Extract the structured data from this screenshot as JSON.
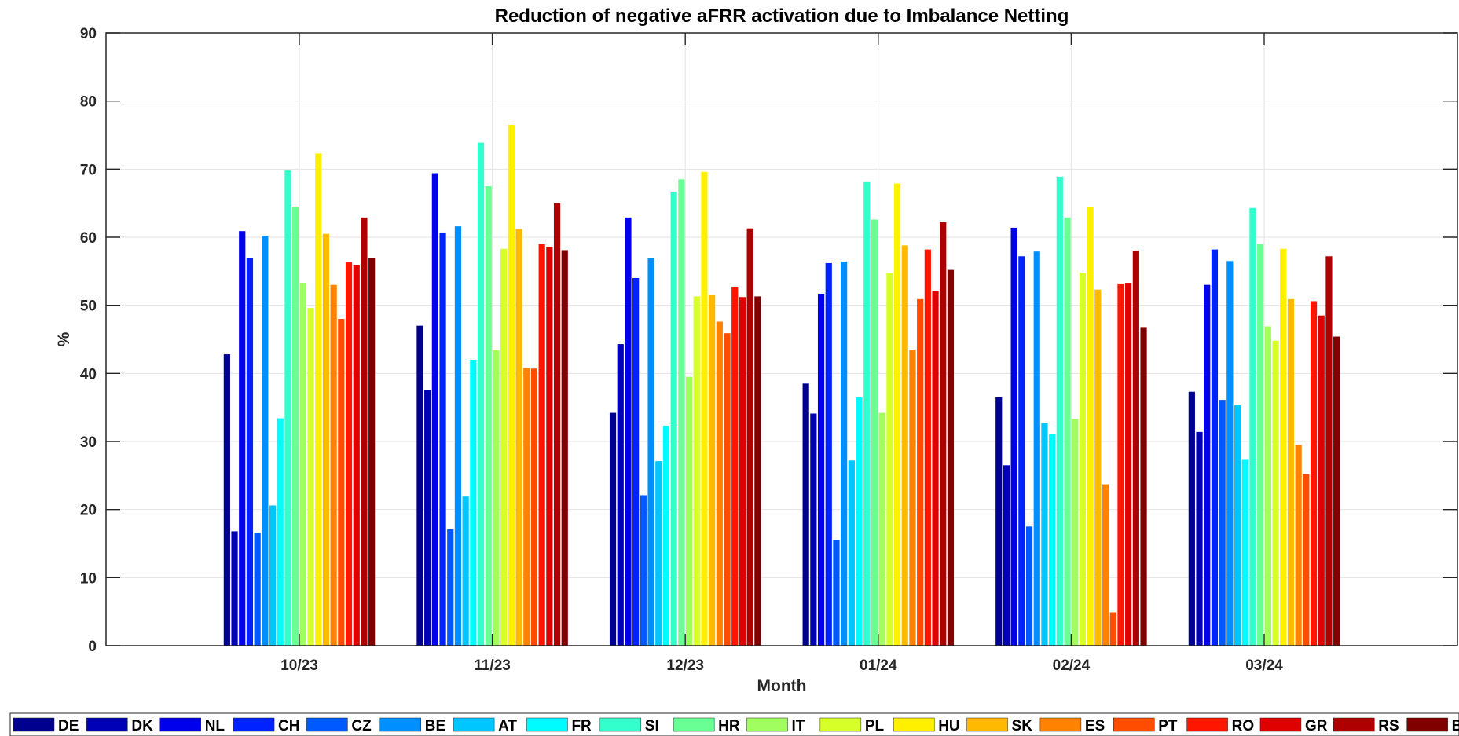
{
  "chart_data": {
    "type": "bar",
    "title": "Reduction of negative aFRR activation due to Imbalance Netting",
    "xlabel": "Month",
    "ylabel": "%",
    "ylim": [
      0,
      90
    ],
    "yticks": [
      0,
      10,
      20,
      30,
      40,
      50,
      60,
      70,
      80,
      90
    ],
    "grid": true,
    "legend_placement": "bottom",
    "categories": [
      "10/23",
      "11/23",
      "12/23",
      "01/24",
      "02/24",
      "03/24"
    ],
    "series": [
      {
        "name": "DE",
        "color": "#00008F",
        "values": [
          42.8,
          47.0,
          34.2,
          38.5,
          36.5,
          37.3
        ]
      },
      {
        "name": "DK",
        "color": "#0000B6",
        "values": [
          16.8,
          37.6,
          44.3,
          34.1,
          26.5,
          31.4
        ]
      },
      {
        "name": "NL",
        "color": "#0000EC",
        "values": [
          60.9,
          69.4,
          62.9,
          51.7,
          61.4,
          53.0
        ]
      },
      {
        "name": "CH",
        "color": "#0022FF",
        "values": [
          57.0,
          60.7,
          54.0,
          56.2,
          57.2,
          58.2
        ]
      },
      {
        "name": "CZ",
        "color": "#0058FF",
        "values": [
          16.6,
          17.1,
          22.1,
          15.5,
          17.5,
          36.1
        ]
      },
      {
        "name": "BE",
        "color": "#008FFF",
        "values": [
          60.2,
          61.6,
          56.9,
          56.4,
          57.9,
          56.5
        ]
      },
      {
        "name": "AT",
        "color": "#00C6FF",
        "values": [
          20.6,
          21.9,
          27.1,
          27.2,
          32.7,
          35.3
        ]
      },
      {
        "name": "FR",
        "color": "#00FCFF",
        "values": [
          33.4,
          42.0,
          32.3,
          36.5,
          31.1,
          27.4
        ]
      },
      {
        "name": "SI",
        "color": "#33FFCC",
        "values": [
          69.8,
          73.9,
          66.7,
          68.1,
          68.9,
          64.3
        ]
      },
      {
        "name": "HR",
        "color": "#6AFF95",
        "values": [
          64.5,
          67.5,
          68.5,
          62.6,
          62.9,
          59.0
        ]
      },
      {
        "name": "IT",
        "color": "#A0FF5F",
        "values": [
          53.3,
          43.4,
          39.5,
          34.2,
          33.3,
          46.9
        ]
      },
      {
        "name": "PL",
        "color": "#D7FF28",
        "values": [
          49.6,
          58.3,
          51.3,
          54.8,
          54.8,
          44.8
        ]
      },
      {
        "name": "HU",
        "color": "#FFF000",
        "values": [
          72.3,
          76.5,
          69.6,
          67.9,
          64.4,
          58.3
        ]
      },
      {
        "name": "SK",
        "color": "#FFBA00",
        "values": [
          60.5,
          61.2,
          51.5,
          58.8,
          52.3,
          50.9
        ]
      },
      {
        "name": "ES",
        "color": "#FF8300",
        "values": [
          53.0,
          40.8,
          47.6,
          43.5,
          23.7,
          29.5
        ]
      },
      {
        "name": "PT",
        "color": "#FF4D00",
        "values": [
          48.0,
          40.7,
          45.9,
          50.9,
          4.9,
          25.2
        ]
      },
      {
        "name": "RO",
        "color": "#FF1600",
        "values": [
          56.3,
          59.0,
          52.7,
          58.2,
          53.2,
          50.6
        ]
      },
      {
        "name": "GR",
        "color": "#DF0000",
        "values": [
          55.9,
          58.6,
          51.2,
          52.1,
          53.3,
          48.5
        ]
      },
      {
        "name": "RS",
        "color": "#AF0000",
        "values": [
          62.9,
          65.0,
          61.3,
          62.2,
          58.0,
          57.2
        ]
      },
      {
        "name": "BG",
        "color": "#800000",
        "values": [
          57.0,
          58.1,
          51.3,
          55.2,
          46.8,
          45.4
        ]
      }
    ]
  }
}
